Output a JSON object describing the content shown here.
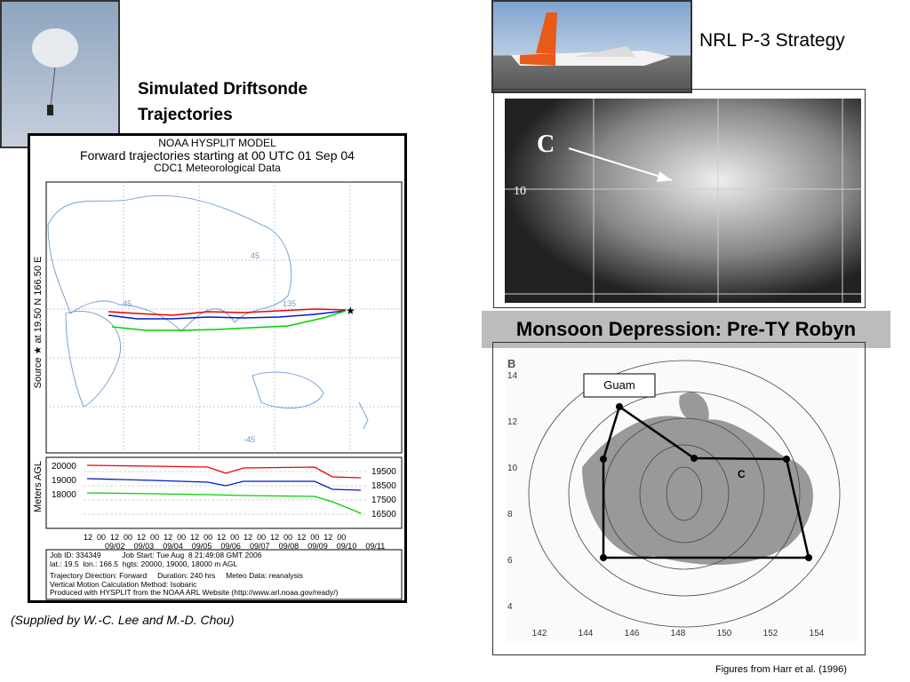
{
  "title": "Simulated Driftsonde Trajectories",
  "right_title": "NRL P-3 Strategy",
  "banner": "Monsoon Depression: Pre-TY Robyn",
  "credit": "(Supplied by W.-C. Lee and M.-D. Chou)",
  "source_note": "Figures from Harr et al. (1996)",
  "hysplit": {
    "header": [
      "NOAA HYSPLIT MODEL",
      "Forward trajectories starting at 00 UTC 01 Sep 04",
      "CDC1 Meteorological Data"
    ],
    "source_label": "Source ★ at  19.50 N  166.50 E",
    "map_labels": [
      "45",
      "45",
      "135",
      "-45"
    ],
    "height_axis_label": "Meters AGL",
    "start_heights": [
      "20000",
      "19000",
      "18000"
    ],
    "end_heights": [
      "19500",
      "18500",
      "17500",
      "16500"
    ],
    "time_row": "12  00  12  00  12  00  12  00  12  00  12  00  12  00  12  00  12  00  12  00",
    "dates": [
      "09/02",
      "09/03",
      "09/04",
      "09/05",
      "09/06",
      "09/07",
      "09/08",
      "09/09",
      "09/10",
      "09/11"
    ],
    "info": [
      "Job ID: 334349          Job Start: Tue Aug  8 21:49:08 GMT 2006",
      "lat.: 19.5  lon.: 166.5  hgts: 20000, 19000, 18000 m AGL",
      "Trajectory Direction: Forward     Duration: 240 hrs     Meteo Data: reanalysis",
      "Vertical Motion Calculation Method: Isobaric",
      "Produced with HYSPLIT from the NOAA ARL Website (http://www.arl.noaa.gov/ready/)"
    ]
  },
  "satellite": {
    "storm_label": "C",
    "lat_label": "10"
  },
  "map": {
    "panel_label": "B",
    "guam": "Guam",
    "storm_label": "C",
    "lon_labels": [
      "142",
      "144",
      "146",
      "148",
      "150",
      "152",
      "154"
    ],
    "lat_labels": [
      "14",
      "12",
      "10",
      "8",
      "6",
      "4"
    ]
  }
}
